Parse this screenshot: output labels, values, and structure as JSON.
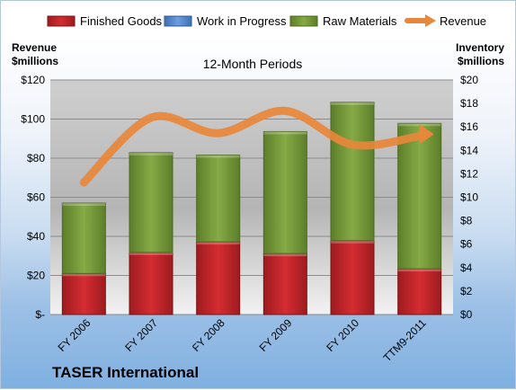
{
  "company_name": "TASER International",
  "colors": {
    "finished_goods": "#c8252a",
    "work_in_progress": "#5b8fd6",
    "raw_materials": "#7ea23b",
    "revenue": "#e8873a",
    "plot_area_top": "#d4d4d4",
    "plot_area_bottom": "#f4f4f4"
  },
  "chart_data": {
    "type": "bar",
    "subtitle": "12-Month Periods",
    "categories": [
      "FY 2006",
      "FY 2007",
      "FY 2008",
      "FY 2009",
      "FY 2010",
      "TTM9-2011"
    ],
    "left_axis": {
      "title_line1": "Revenue",
      "title_line2": "$millions",
      "range": [
        0,
        120
      ],
      "ticks": [
        0,
        20,
        40,
        60,
        80,
        100,
        120
      ],
      "tick_labels": [
        "$-",
        "$20",
        "$40",
        "$60",
        "$80",
        "$100",
        "$120"
      ]
    },
    "right_axis": {
      "title_line1": "Inventory",
      "title_line2": "$millions",
      "range": [
        0,
        20
      ],
      "ticks": [
        0,
        2,
        4,
        6,
        8,
        10,
        12,
        14,
        16,
        18,
        20
      ],
      "tick_labels": [
        "$0",
        "$2",
        "$4",
        "$6",
        "$8",
        "$10",
        "$12",
        "$14",
        "$16",
        "$18",
        "$20"
      ]
    },
    "stacked": true,
    "series": [
      {
        "name": "Finished Goods",
        "axis": "right",
        "kind": "bar",
        "values": [
          3.5,
          5.3,
          6.2,
          5.2,
          6.3,
          3.9
        ]
      },
      {
        "name": "Work in Progress",
        "axis": "right",
        "kind": "bar",
        "values": [
          0,
          0,
          0,
          0,
          0,
          0
        ]
      },
      {
        "name": "Raw Materials",
        "axis": "right",
        "kind": "bar",
        "values": [
          6.0,
          8.5,
          7.4,
          10.4,
          11.8,
          12.4
        ]
      },
      {
        "name": "Revenue",
        "axis": "left",
        "kind": "line",
        "values": [
          67.6,
          100.7,
          92.8,
          104.2,
          86.9,
          91.3
        ]
      }
    ],
    "legend_position": "top",
    "grid": true
  }
}
